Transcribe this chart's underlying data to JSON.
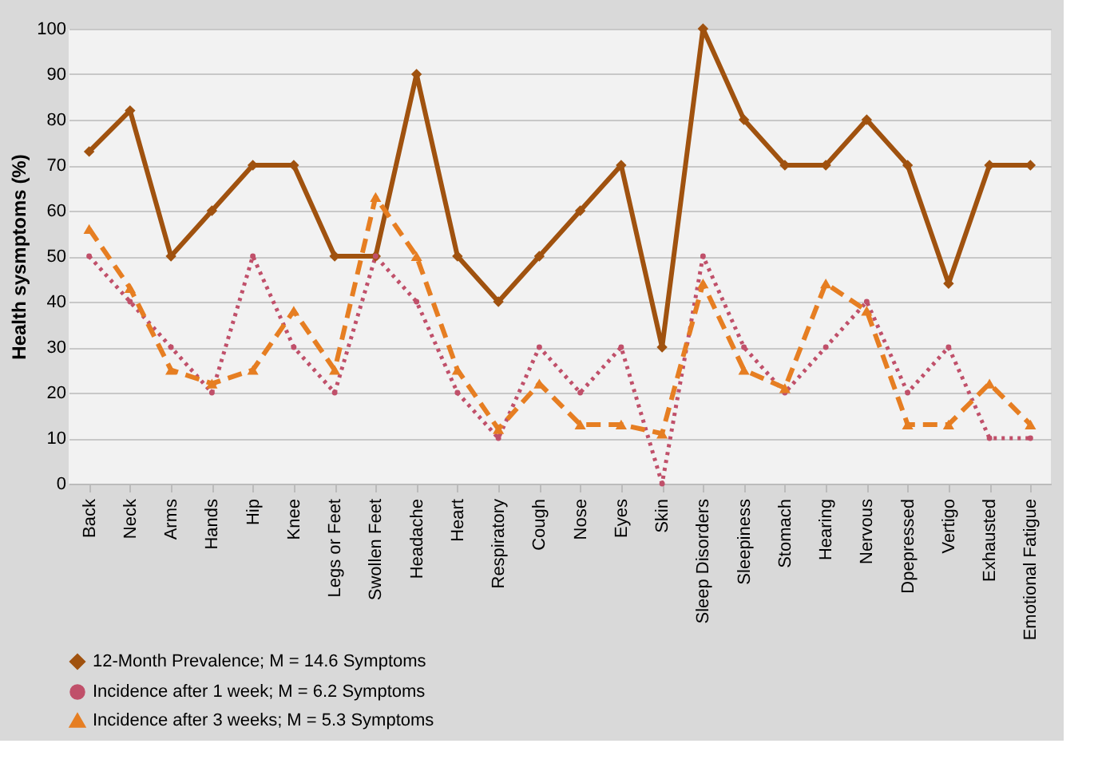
{
  "chart_data": {
    "type": "line",
    "ylabel": "Health sysmptoms (%)",
    "categories": [
      "Back",
      "Neck",
      "Arms",
      "Hands",
      "Hip",
      "Knee",
      "Legs or Feet",
      "Swollen Feet",
      "Headache",
      "Heart",
      "Respiratory",
      "Cough",
      "Nose",
      "Eyes",
      "Skin",
      "Sleep Disorders",
      "Sleepiness",
      "Stomach",
      "Hearing",
      "Nervous",
      "Dpepressed",
      "Vertigo",
      "Exhausted",
      "Emotional Fatigue"
    ],
    "series": [
      {
        "name": "12-Month Prevalence; M = 14.6 Symptoms",
        "color": "#a0520f",
        "marker": "diamond",
        "line_style": "solid",
        "values": [
          73,
          82,
          50,
          60,
          70,
          70,
          50,
          50,
          90,
          50,
          40,
          50,
          60,
          70,
          30,
          100,
          80,
          70,
          70,
          80,
          70,
          44,
          70,
          70
        ]
      },
      {
        "name": "Incidence after 1 week; M = 6.2 Symptoms",
        "color": "#c0506a",
        "marker": "circle",
        "line_style": "dotted",
        "values": [
          50,
          40,
          30,
          20,
          50,
          30,
          20,
          50,
          40,
          20,
          10,
          30,
          20,
          30,
          0,
          50,
          30,
          20,
          30,
          40,
          20,
          30,
          10,
          10
        ]
      },
      {
        "name": "Incidence after 3 weeks; M = 5.3 Symptoms",
        "color": "#e67e22",
        "marker": "triangle",
        "line_style": "dashed",
        "values": [
          56,
          43,
          25,
          22,
          25,
          38,
          25,
          63,
          50,
          25,
          12,
          22,
          13,
          13,
          11,
          44,
          25,
          21,
          44,
          38,
          13,
          13,
          22,
          13
        ]
      }
    ],
    "ylim": [
      0,
      100
    ],
    "yticks": [
      0,
      10,
      20,
      30,
      40,
      50,
      60,
      70,
      80,
      90,
      100
    ],
    "grid": "y",
    "legend": "bottom"
  }
}
